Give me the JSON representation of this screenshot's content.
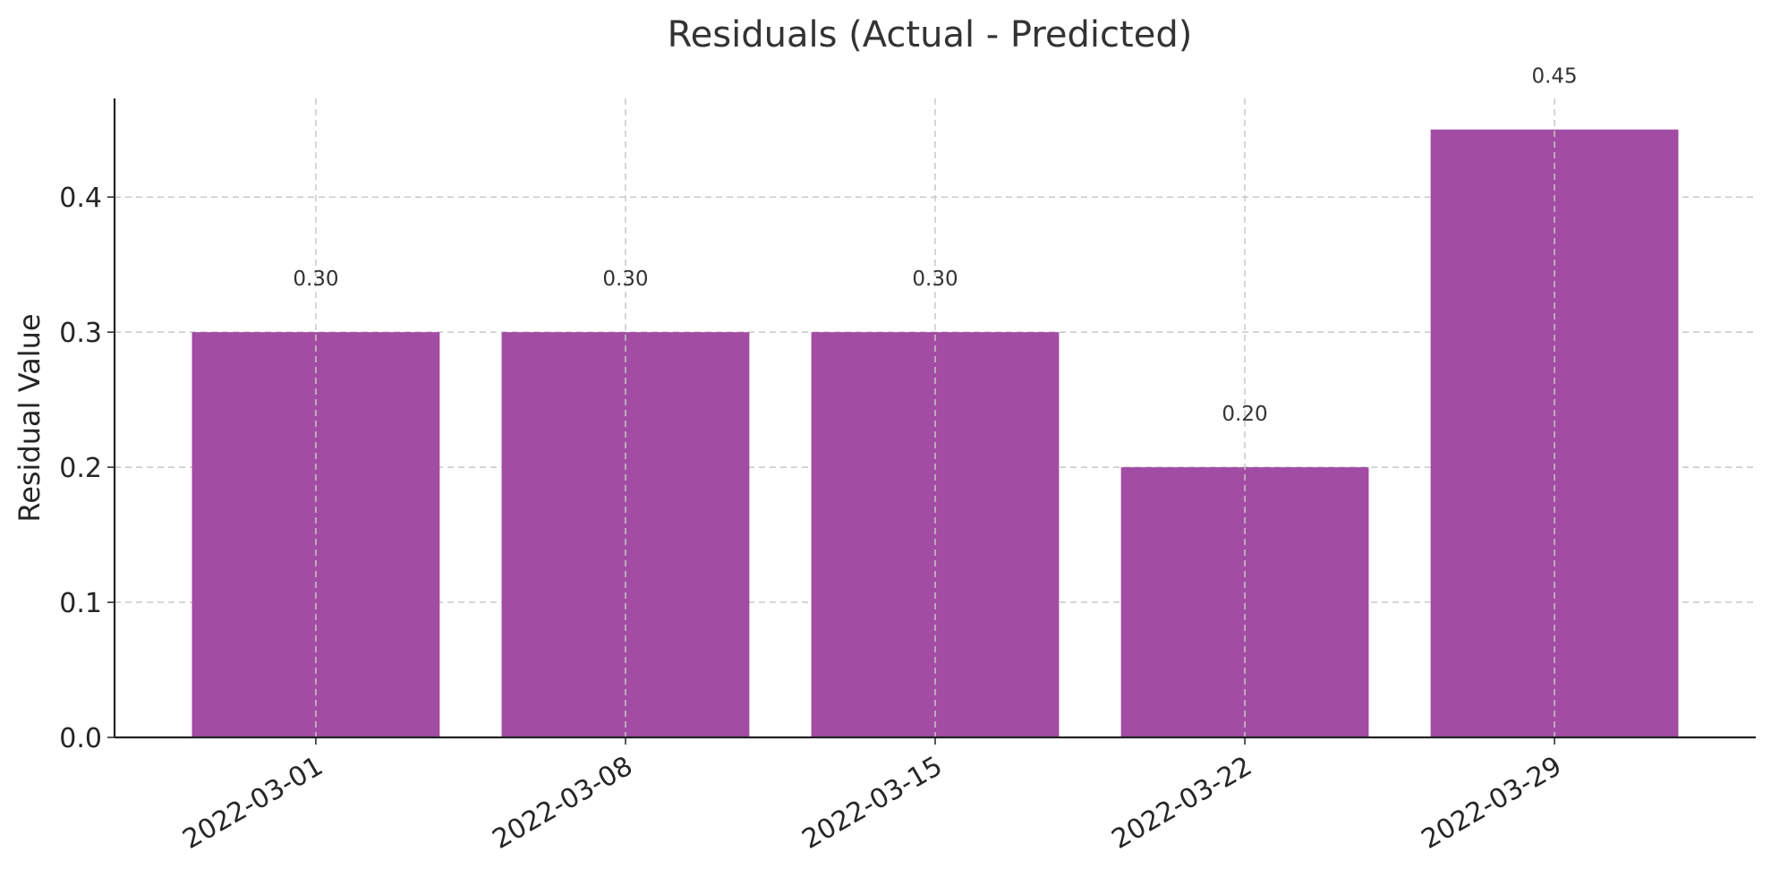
{
  "chart_data": {
    "type": "bar",
    "title": "Residuals (Actual - Predicted)",
    "xlabel": "",
    "ylabel": "Residual Value",
    "categories": [
      "2022-03-01",
      "2022-03-08",
      "2022-03-15",
      "2022-03-22",
      "2022-03-29"
    ],
    "values": [
      0.3,
      0.3,
      0.3,
      0.2,
      0.45
    ],
    "data_labels": [
      "0.30",
      "0.30",
      "0.30",
      "0.20",
      "0.45"
    ],
    "ylim": [
      0.0,
      0.473
    ],
    "y_ticks": [
      0.0,
      0.1,
      0.2,
      0.3,
      0.4
    ],
    "y_tick_labels": [
      "0.0",
      "0.1",
      "0.2",
      "0.3",
      "0.4"
    ],
    "grid": true,
    "legend": false,
    "colors": {
      "bar": "#a34ca3"
    }
  }
}
